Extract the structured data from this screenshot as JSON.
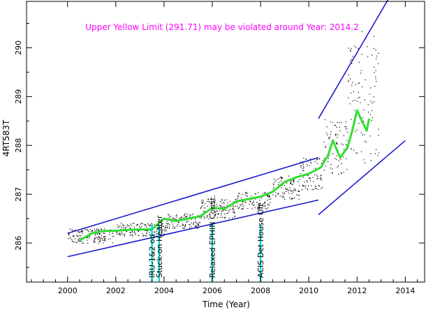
{
  "chart_data": {
    "type": "scatter",
    "title": "Upper Yellow  Limit (291.71) may be violated around Year: 2014.2",
    "xlabel": "Time (Year)",
    "ylabel": "4RT583T",
    "xlim": [
      1998.3,
      2014.8
    ],
    "ylim": [
      285.2,
      290.95
    ],
    "x_ticks": [
      2000,
      2002,
      2004,
      2006,
      2008,
      2010,
      2012,
      2014
    ],
    "y_ticks": [
      286,
      287,
      288,
      289,
      290
    ],
    "x_tick_labels": [
      "2000",
      "2002",
      "2004",
      "2006",
      "2008",
      "2010",
      "2012",
      "2014"
    ],
    "y_tick_labels": [
      "286",
      "287",
      "288",
      "289",
      "290"
    ],
    "grid": false,
    "legend": "none",
    "colors": {
      "points": "#000000",
      "moving_average": "#33dd33",
      "trend_lines": "#1a1acc",
      "events": "#00dddd",
      "title": "#ff00ff"
    },
    "scatter_density": [
      {
        "x": [
          2000.0,
          2001.9
        ],
        "y": [
          286.0,
          286.3
        ]
      },
      {
        "x": [
          2002.0,
          2004.1
        ],
        "y": [
          286.15,
          286.42
        ]
      },
      {
        "x": [
          2004.1,
          2005.5
        ],
        "y": [
          286.3,
          286.62
        ]
      },
      {
        "x": [
          2005.5,
          2007.0
        ],
        "y": [
          286.5,
          286.92
        ]
      },
      {
        "x": [
          2007.0,
          2008.4
        ],
        "y": [
          286.7,
          287.05
        ]
      },
      {
        "x": [
          2008.4,
          2009.6
        ],
        "y": [
          286.9,
          287.4
        ]
      },
      {
        "x": [
          2009.6,
          2010.6
        ],
        "y": [
          287.1,
          287.75
        ]
      },
      {
        "x": [
          2010.6,
          2011.6
        ],
        "y": [
          287.4,
          288.55
        ]
      },
      {
        "x": [
          2011.6,
          2012.9
        ],
        "y": [
          287.6,
          290.35
        ]
      }
    ],
    "series": [
      {
        "x": [
          2000.5,
          2001.0,
          2001.5,
          2002.0,
          2002.5,
          2003.0,
          2003.5,
          2004.0,
          2004.5,
          2005.0,
          2005.5,
          2006.0,
          2006.5,
          2007.0,
          2007.5,
          2008.0,
          2008.5,
          2009.0,
          2009.5,
          2010.0,
          2010.5,
          2010.8,
          2011.0,
          2011.3,
          2011.6,
          2011.8,
          2012.0,
          2012.2,
          2012.4,
          2012.5
        ],
        "y": [
          286.05,
          286.2,
          286.25,
          286.25,
          286.27,
          286.28,
          286.28,
          286.5,
          286.45,
          286.5,
          286.55,
          286.72,
          286.7,
          286.85,
          286.9,
          286.95,
          287.05,
          287.25,
          287.35,
          287.42,
          287.55,
          287.8,
          288.1,
          287.75,
          287.95,
          288.3,
          288.72,
          288.5,
          288.3,
          288.55
        ]
      },
      {
        "x": [
          2000.0,
          2010.4
        ],
        "y": [
          286.2,
          287.75
        ]
      },
      {
        "x": [
          2000.0,
          2010.4
        ],
        "y": [
          285.72,
          286.88
        ]
      },
      {
        "x": [
          2010.4,
          2013.3
        ],
        "y": [
          288.55,
          291.0
        ]
      },
      {
        "x": [
          2010.4,
          2014.0
        ],
        "y": [
          286.58,
          288.1
        ]
      }
    ],
    "events": [
      {
        "x": 2003.5,
        "label": "IRU-1&2 on"
      },
      {
        "x": 2003.8,
        "label": "Stuck-on Heater"
      },
      {
        "x": 2006.0,
        "label": "Relaxed EPHIN Const."
      },
      {
        "x": 2008.0,
        "label": "ACIS Det House Off"
      }
    ]
  }
}
